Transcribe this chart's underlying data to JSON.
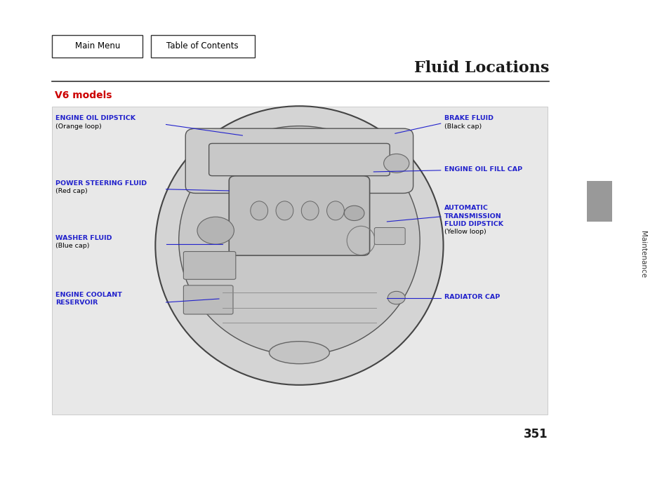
{
  "title": "Fluid Locations",
  "subtitle": "V6 models",
  "page_number": "351",
  "bg_color": "#ffffff",
  "diagram_bg": "#e8e8e8",
  "btn_main_menu": "Main Menu",
  "btn_table_of_contents": "Table of Contents",
  "sidebar_text": "Maintenance",
  "line_color": "#2222cc",
  "label_color": "#2222cc",
  "normal_color": "#000000",
  "title_color": "#1a1a1a",
  "subtitle_color": "#cc0000",
  "sidebar_bar_color": "#999999"
}
